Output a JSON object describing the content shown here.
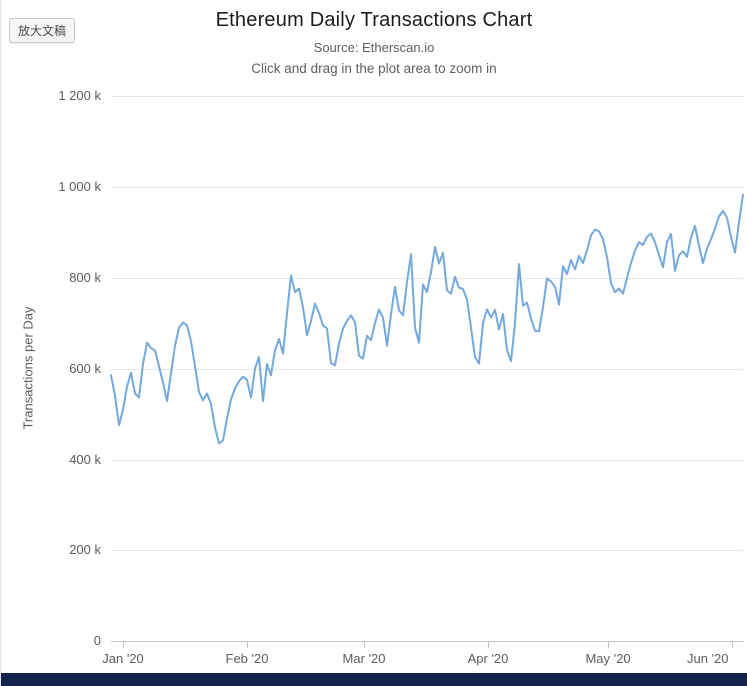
{
  "badge": {
    "label": "放大文稿"
  },
  "header": {
    "title": "Ethereum Daily Transactions Chart",
    "subtitle_source": "Source: Etherscan.io",
    "subtitle_hint": "Click and drag in the plot area to zoom in"
  },
  "y_axis": {
    "title": "Transactions per Day"
  },
  "colors": {
    "line": "#74a9dd",
    "grid": "#e6e6e6",
    "axis": "#c6c6c6",
    "text": "#5c5c5c",
    "title_text": "#1c1c1c",
    "bottom_bar": "#13234b"
  },
  "chart_data": {
    "type": "line",
    "title": "Ethereum Daily Transactions Chart",
    "subtitle": "Source: Etherscan.io — Click and drag in the plot area to zoom in",
    "series_name": "Transactions per Day",
    "unit": "thousand transactions per day (k)",
    "interval": "daily",
    "start_date": "2019-12-28",
    "end_date": "2020-06-03",
    "ylim": [
      0,
      1200
    ],
    "grid": true,
    "legend": "none",
    "y_ticks": [
      {
        "value": 1200,
        "label": "1 200 k"
      },
      {
        "value": 1000,
        "label": "1 000 k"
      },
      {
        "value": 800,
        "label": "800 k"
      },
      {
        "value": 600,
        "label": "600 k"
      },
      {
        "value": 400,
        "label": "400 k"
      },
      {
        "value": 200,
        "label": "200 k"
      },
      {
        "value": 0,
        "label": "0"
      }
    ],
    "x_ticks": [
      {
        "date": "2020-01-01",
        "label": "Jan '20"
      },
      {
        "date": "2020-02-01",
        "label": "Feb '20"
      },
      {
        "date": "2020-03-01",
        "label": "Mar '20"
      },
      {
        "date": "2020-04-01",
        "label": "Apr '20"
      },
      {
        "date": "2020-05-01",
        "label": "May '20"
      },
      {
        "date": "2020-06-01",
        "label": "Jun '20"
      }
    ],
    "values_unit_k": [
      585,
      540,
      475,
      510,
      560,
      591,
      545,
      536,
      610,
      657,
      645,
      640,
      605,
      569,
      528,
      590,
      650,
      690,
      701,
      695,
      660,
      605,
      548,
      530,
      545,
      522,
      470,
      435,
      442,
      490,
      532,
      556,
      572,
      582,
      575,
      536,
      600,
      625,
      528,
      610,
      585,
      640,
      665,
      633,
      722,
      805,
      768,
      776,
      735,
      673,
      705,
      743,
      722,
      695,
      688,
      612,
      607,
      655,
      688,
      705,
      717,
      702,
      628,
      622,
      672,
      662,
      700,
      730,
      712,
      650,
      720,
      780,
      728,
      717,
      790,
      852,
      690,
      657,
      785,
      768,
      812,
      868,
      831,
      855,
      772,
      765,
      802,
      778,
      775,
      752,
      690,
      625,
      611,
      700,
      730,
      712,
      729,
      686,
      720,
      640,
      616,
      700,
      830,
      738,
      745,
      710,
      683,
      682,
      735,
      798,
      792,
      780,
      741,
      825,
      808,
      839,
      818,
      848,
      832,
      860,
      893,
      906,
      902,
      885,
      845,
      788,
      768,
      776,
      765,
      800,
      832,
      860,
      878,
      872,
      890,
      897,
      878,
      850,
      823,
      878,
      896,
      815,
      850,
      858,
      846,
      888,
      914,
      870,
      832,
      864,
      885,
      908,
      935,
      947,
      932,
      890,
      855,
      922,
      983
    ]
  }
}
